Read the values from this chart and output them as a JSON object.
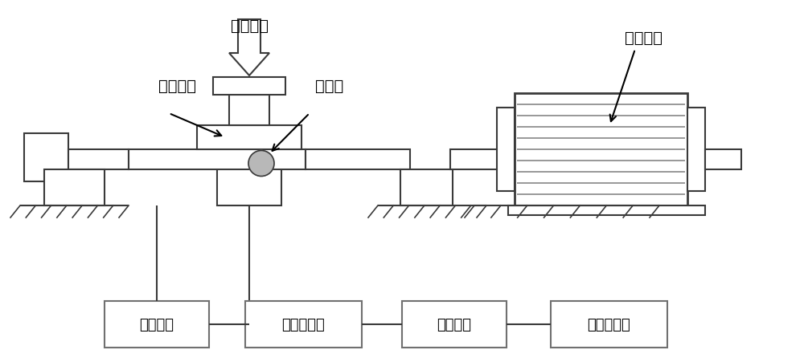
{
  "bg_color": "#ffffff",
  "line_color": "#3a3a3a",
  "sensor_circle_color": "#b8b8b8",
  "label_train_bearing": "列车轴承",
  "label_radial_load": "径向载荷",
  "label_sensor": "传感器",
  "label_drive_motor": "驱动电机",
  "label_load_display": "载荷显示",
  "label_signal_amp": "信号放大器",
  "label_acquisition": "采集系统",
  "label_laptop": "笔记本电脑",
  "font_size_labels": 14,
  "font_size_boxes": 13
}
